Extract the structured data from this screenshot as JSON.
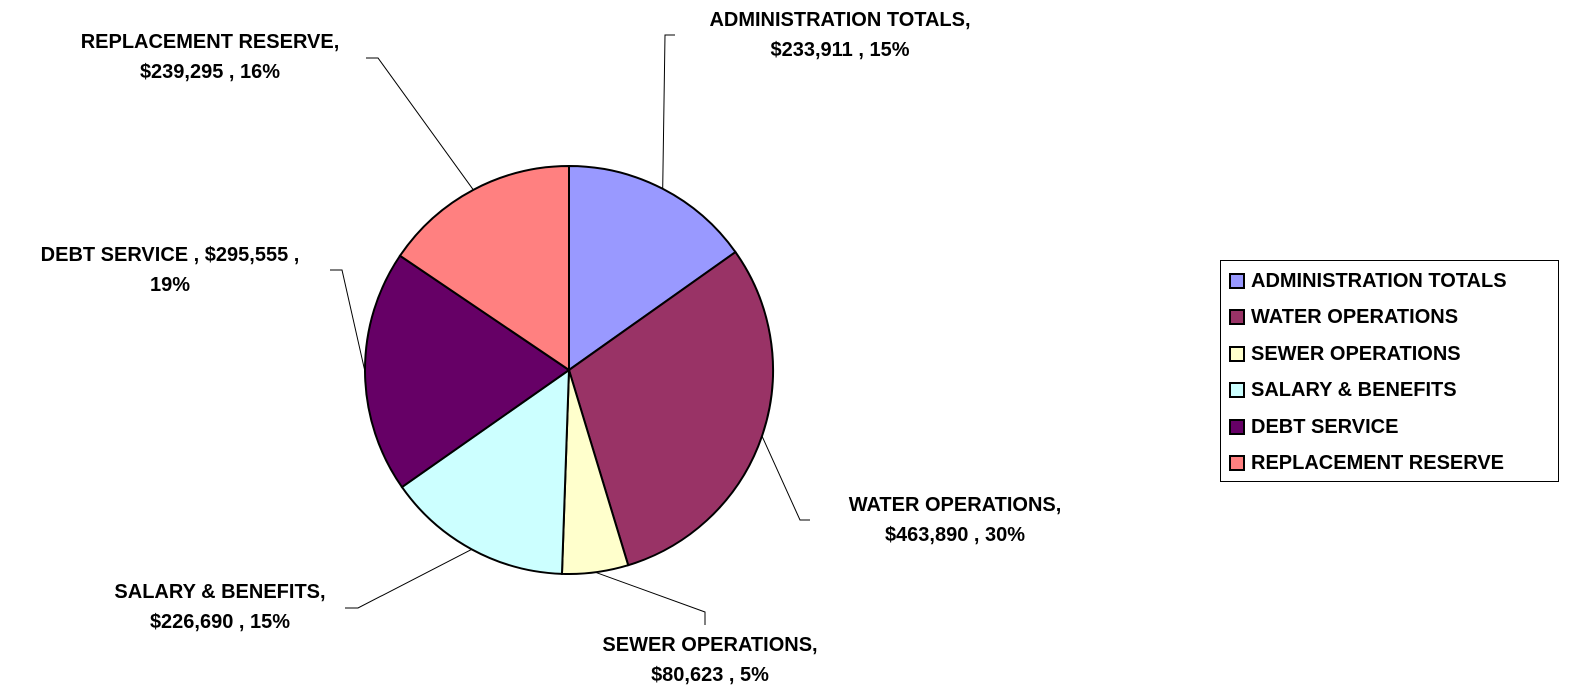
{
  "chart_data": {
    "type": "pie",
    "slices": [
      {
        "name": "ADMINISTRATION TOTALS",
        "value": 233911,
        "label_line1": "ADMINISTRATION TOTALS,",
        "label_line2": "$233,911 , 15%",
        "color": "#9999FF"
      },
      {
        "name": "WATER OPERATIONS",
        "value": 463890,
        "label_line1": "WATER OPERATIONS,",
        "label_line2": "$463,890 , 30%",
        "color": "#993366"
      },
      {
        "name": "SEWER OPERATIONS",
        "value": 80623,
        "label_line1": "SEWER OPERATIONS,",
        "label_line2": "$80,623 , 5%",
        "color": "#FFFFCC"
      },
      {
        "name": "SALARY & BENEFITS",
        "value": 226690,
        "label_line1": "SALARY & BENEFITS,",
        "label_line2": "$226,690 , 15%",
        "color": "#CCFFFF"
      },
      {
        "name": "DEBT SERVICE",
        "value": 295555,
        "label_line1": "DEBT SERVICE ,  $295,555 ,",
        "label_line2": "19%",
        "color": "#660066"
      },
      {
        "name": "REPLACEMENT RESERVE",
        "value": 239295,
        "label_line1": "REPLACEMENT RESERVE,",
        "label_line2": "$239,295 , 16%",
        "color": "#FF8080"
      }
    ],
    "legend_placement": "right"
  }
}
